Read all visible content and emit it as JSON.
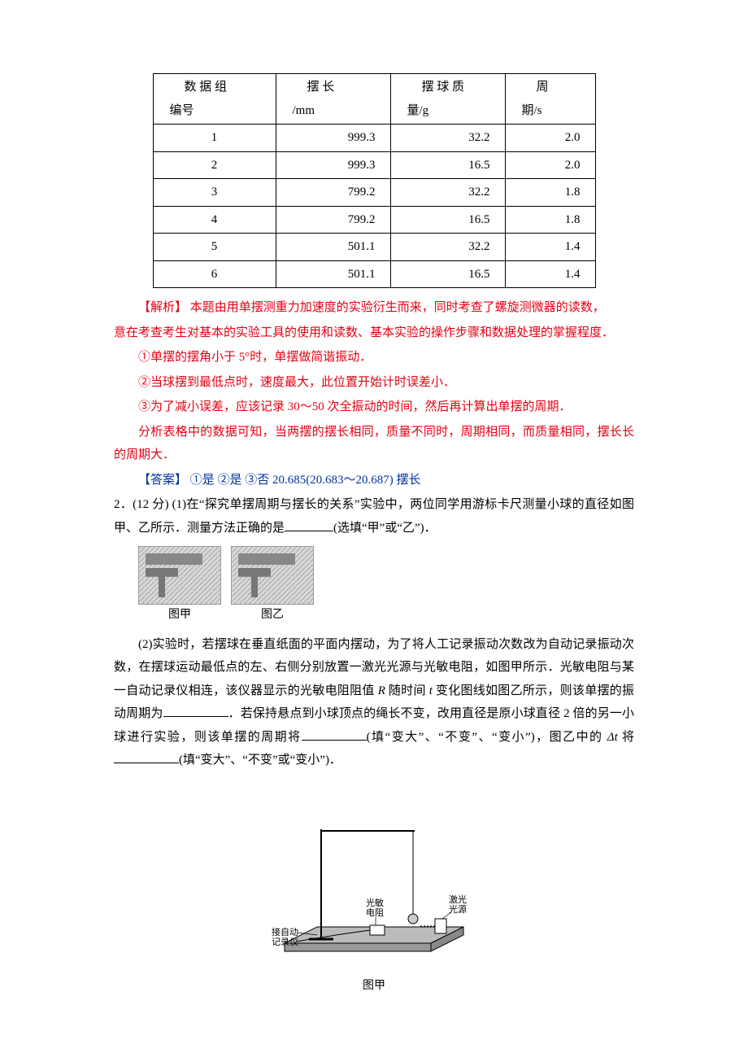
{
  "table": {
    "columns": [
      {
        "line1": "数 据 组",
        "line2": "编号",
        "width_cls": "w0"
      },
      {
        "line1": "摆 长",
        "line2": "/mm",
        "width_cls": "w1"
      },
      {
        "line1": "摆 球 质",
        "line2": "量/g",
        "width_cls": "w2"
      },
      {
        "line1": "周",
        "line2": "期/s",
        "width_cls": "w3"
      }
    ],
    "rows": [
      [
        "1",
        "999.3",
        "32.2",
        "2.0"
      ],
      [
        "2",
        "999.3",
        "16.5",
        "2.0"
      ],
      [
        "3",
        "799.2",
        "32.2",
        "1.8"
      ],
      [
        "4",
        "799.2",
        "16.5",
        "1.8"
      ],
      [
        "5",
        "501.1",
        "32.2",
        "1.4"
      ],
      [
        "6",
        "501.1",
        "16.5",
        "1.4"
      ]
    ]
  },
  "analysis": {
    "label": "【解析】 ",
    "p1a": "本题由用单摆测重力加速度的实验衍生而来，同时考查了螺旋测微器的读数，",
    "p1b": "意在考查考生对基本的实验工具的使用和读数、基本实验的操作步骤和数据处理的掌握程度．",
    "p2": "①单摆的摆角小于 5°时，单摆做简谐振动．",
    "p3": "②当球摆到最低点时，速度最大，此位置开始计时误差小．",
    "p4": "③为了减小误差，应该记录 30～50 次全振动的时间，然后再计算出单摆的周期．",
    "p5": "分析表格中的数据可知，当两摆的摆长相同，质量不同时，周期相同，而质量相同，摆长长的周期大．"
  },
  "answer": {
    "label": "【答案】 ",
    "text": "①是  ②是  ③否  20.685(20.683～20.687)  摆长"
  },
  "q2": {
    "lead": "2．(12 分)  (1)在“探究单摆周期与摆长的关系”实验中，两位同学用游标卡尺测量小球的直径如图甲、乙所示．测量方法正确的是",
    "lead_end": "(选填“甲”或“乙”)．",
    "fig_a": "图甲",
    "fig_b": "图乙",
    "part2": {
      "s1": "(2)实验时，若摆球在垂直纸面的平面内摆动，为了将人工记录振动次数改为自动记录振动次数，在摆球运动最低点的左、右侧分别放置一激光光源与光敏电阻，如图甲所示．光敏电阻与某一自动记录仪相连，该仪器显示的光敏电阻阻值",
      "s1i": "R",
      "s1b": "随时间",
      "s1i2": "t",
      "s1c": "变化图线如图乙所示，则该单摆的振动周期为",
      "s2": "．若保持悬点到小球顶点的绳长不变，改用直径是原小球直径 2 倍的另一小球进行实验，则该单摆的周期将",
      "s2b": "(填“变大”、“不变”、“变小”)，图乙中的",
      "s2i": "Δt",
      "s2c": "将",
      "s2d": "(填“变大”、“不变”或“变小”)．"
    },
    "apparatus_caption": "图甲",
    "labels": {
      "recorder_l1": "接自动",
      "recorder_l2": "记录仪",
      "resistor_l1": "光敏",
      "resistor_l2": "电阻",
      "laser_l1": "激光",
      "laser_l2": "光源"
    }
  }
}
